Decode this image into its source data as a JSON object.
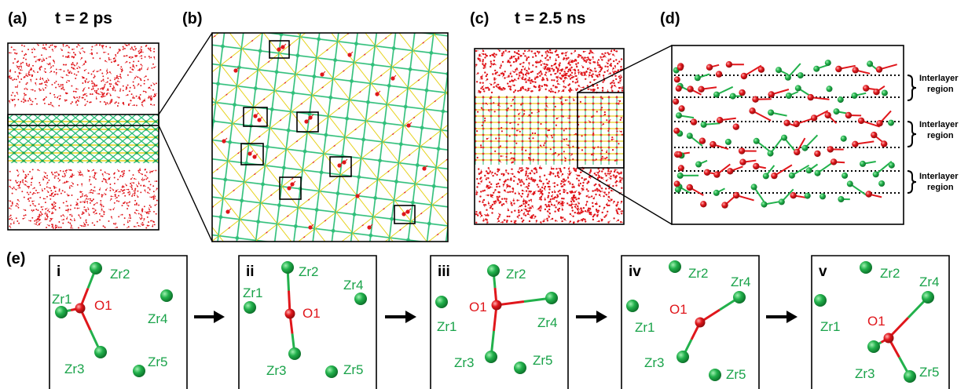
{
  "panels": {
    "a": {
      "label": "(a)",
      "time": "t = 2 ps"
    },
    "b": {
      "label": "(b)"
    },
    "c": {
      "label": "(c)",
      "time": "t = 2.5 ns"
    },
    "d": {
      "label": "(d)",
      "region_line1": "Interlayer",
      "region_line2": "region"
    },
    "e": {
      "label": "(e)"
    }
  },
  "sequence": [
    {
      "step": "i",
      "zr_labels": [
        "Zr2",
        "Zr1",
        "Zr4",
        "Zr3",
        "Zr5"
      ],
      "o_label": "O1"
    },
    {
      "step": "ii",
      "zr_labels": [
        "Zr2",
        "Zr1",
        "Zr4",
        "Zr3",
        "Zr5"
      ],
      "o_label": "O1"
    },
    {
      "step": "iii",
      "zr_labels": [
        "Zr2",
        "Zr1",
        "Zr4",
        "Zr3",
        "Zr5"
      ],
      "o_label": "O1"
    },
    {
      "step": "iv",
      "zr_labels": [
        "Zr2",
        "Zr4",
        "Zr1",
        "Zr3",
        "Zr5"
      ],
      "o_label": "O1"
    },
    {
      "step": "v",
      "zr_labels": [
        "Zr2",
        "Zr4",
        "Zr1",
        "Zr3",
        "Zr5"
      ],
      "o_label": "O1"
    }
  ],
  "colors": {
    "zr_atom": "#22b14c",
    "oxygen_atom": "#e0161b",
    "lattice_yellow": "#e6d21e",
    "lattice_green": "#2fbf7a",
    "frame": "#000000"
  }
}
